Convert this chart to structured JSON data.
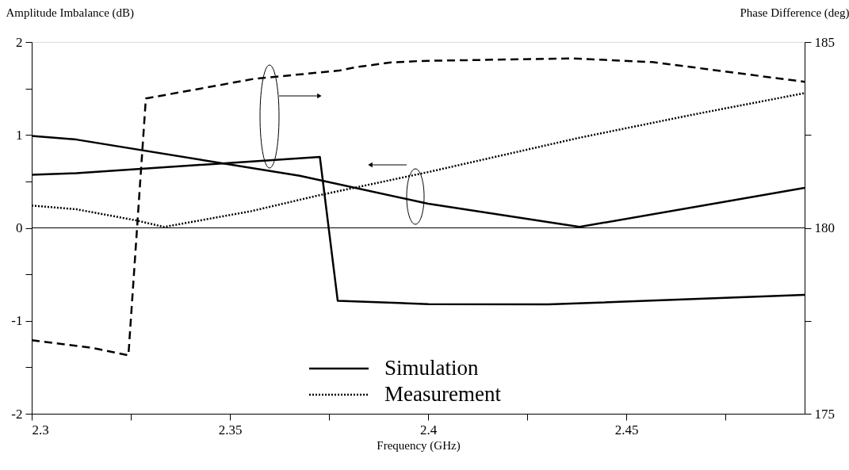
{
  "chart_data": {
    "type": "line",
    "xlabel": "Frequency (GHz)",
    "ylabel": "Amplitude Imbalance (dB)",
    "y2label": "Phase Difference (deg)",
    "xlim": [
      2.3,
      2.495
    ],
    "xticks": [
      2.3,
      {
        "value": 2.325,
        "label": null
      },
      2.35,
      {
        "value": 2.375,
        "label": null
      },
      2.4,
      {
        "value": 2.425,
        "label": null
      },
      2.45,
      {
        "value": 2.475,
        "label": null
      }
    ],
    "ylim": [
      -2,
      2
    ],
    "yticks": [
      -2,
      {
        "value": -1.5,
        "label": null
      },
      -1,
      {
        "value": -0.5,
        "label": null
      },
      0,
      {
        "value": 0.5,
        "label": null
      },
      1,
      {
        "value": 1.5,
        "label": null
      },
      2
    ],
    "y2lim": [
      175,
      185
    ],
    "y2ticks": [
      175,
      {
        "value": 177.5,
        "label": null
      },
      180,
      {
        "value": 182.5,
        "label": null
      },
      185
    ],
    "grid": false,
    "legend": "bottom",
    "ref_lines": [
      {
        "axis": "y",
        "value": 0,
        "color": "#000000"
      }
    ],
    "series": [
      {
        "name": "Simulation",
        "color": "#000000",
        "line_style": "solid",
        "x": [
          2.3,
          2.3113,
          2.3676,
          2.4,
          2.4382,
          2.495
        ],
        "values": [
          0.99,
          0.95,
          0.56,
          0.26,
          0.01,
          0.43
        ]
      },
      {
        "name": "Measurement",
        "color": "#000000",
        "line_style": "dotted",
        "x": [
          2.3,
          2.3113,
          2.3264,
          2.3334,
          2.3554,
          2.3724,
          2.4,
          2.4382,
          2.467,
          2.495
        ],
        "values": [
          0.24,
          0.2,
          0.08,
          0.01,
          0.18,
          0.35,
          0.6,
          0.97,
          1.22,
          1.45
        ]
      },
      {
        "color": "#000000",
        "line_style": "solid",
        "axis": "y2",
        "x": [
          2.3,
          2.3113,
          2.3727,
          2.3772,
          2.4001,
          2.4304,
          2.495
        ],
        "values": [
          181.43,
          181.47,
          181.91,
          178.04,
          177.95,
          177.94,
          178.2
        ]
      },
      {
        "color": "#000000",
        "line_style": "dashed",
        "axis": "y2",
        "x": [
          2.3,
          2.3154,
          2.3244,
          2.3288,
          2.3561,
          2.3775,
          2.3816,
          2.3906,
          2.398,
          2.4366,
          2.4566,
          2.4704,
          2.495
        ],
        "values": [
          176.98,
          176.77,
          176.57,
          183.48,
          184.01,
          184.23,
          184.32,
          184.45,
          184.49,
          184.56,
          184.46,
          184.27,
          183.93
        ]
      }
    ]
  }
}
